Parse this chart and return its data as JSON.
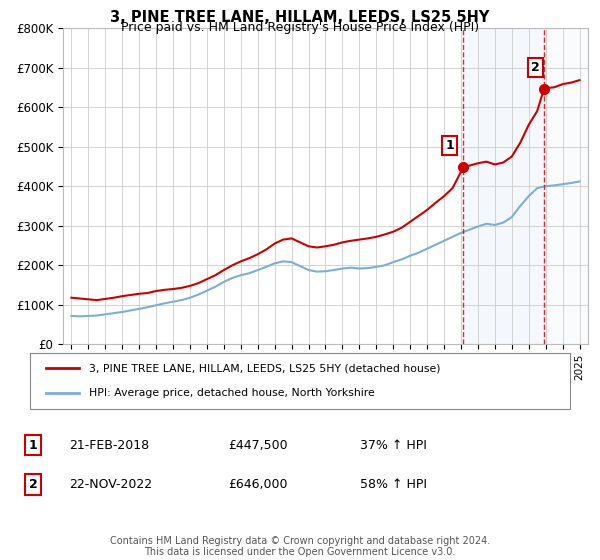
{
  "title": "3, PINE TREE LANE, HILLAM, LEEDS, LS25 5HY",
  "subtitle": "Price paid vs. HM Land Registry's House Price Index (HPI)",
  "red_label": "3, PINE TREE LANE, HILLAM, LEEDS, LS25 5HY (detached house)",
  "blue_label": "HPI: Average price, detached house, North Yorkshire",
  "annotation1_date": "21-FEB-2018",
  "annotation1_price": "£447,500",
  "annotation1_hpi": "37% ↑ HPI",
  "annotation2_date": "22-NOV-2022",
  "annotation2_price": "£646,000",
  "annotation2_hpi": "58% ↑ HPI",
  "footnote": "Contains HM Land Registry data © Crown copyright and database right 2024.\nThis data is licensed under the Open Government Licence v3.0.",
  "red_color": "#cc0000",
  "blue_color": "#7bafd4",
  "marker1_x": 2018.13,
  "marker1_y": 447500,
  "marker2_x": 2022.9,
  "marker2_y": 646000,
  "vline1_x": 2018.13,
  "vline2_x": 2022.9,
  "ylim": [
    0,
    800000
  ],
  "xlim": [
    1994.5,
    2025.5
  ],
  "yticks": [
    0,
    100000,
    200000,
    300000,
    400000,
    500000,
    600000,
    700000,
    800000
  ],
  "ytick_labels": [
    "£0",
    "£100K",
    "£200K",
    "£300K",
    "£400K",
    "£500K",
    "£600K",
    "£700K",
    "£800K"
  ],
  "xticks": [
    1995,
    1996,
    1997,
    1998,
    1999,
    2000,
    2001,
    2002,
    2003,
    2004,
    2005,
    2006,
    2007,
    2008,
    2009,
    2010,
    2011,
    2012,
    2013,
    2014,
    2015,
    2016,
    2017,
    2018,
    2019,
    2020,
    2021,
    2022,
    2023,
    2024,
    2025
  ],
  "red_x": [
    1995.0,
    1995.5,
    1996.0,
    1996.5,
    1997.0,
    1997.5,
    1998.0,
    1998.5,
    1999.0,
    1999.5,
    2000.0,
    2000.5,
    2001.0,
    2001.5,
    2002.0,
    2002.5,
    2003.0,
    2003.5,
    2004.0,
    2004.5,
    2005.0,
    2005.5,
    2006.0,
    2006.5,
    2007.0,
    2007.5,
    2008.0,
    2008.5,
    2009.0,
    2009.5,
    2010.0,
    2010.5,
    2011.0,
    2011.5,
    2012.0,
    2012.5,
    2013.0,
    2013.5,
    2014.0,
    2014.5,
    2015.0,
    2015.5,
    2016.0,
    2016.5,
    2017.0,
    2017.5,
    2018.13,
    2018.5,
    2019.0,
    2019.5,
    2020.0,
    2020.5,
    2021.0,
    2021.5,
    2022.0,
    2022.5,
    2022.9,
    2023.0,
    2023.5,
    2024.0,
    2024.5,
    2025.0
  ],
  "red_y": [
    118000,
    116000,
    114000,
    112000,
    115000,
    118000,
    122000,
    125000,
    128000,
    130000,
    135000,
    138000,
    140000,
    143000,
    148000,
    155000,
    165000,
    175000,
    188000,
    200000,
    210000,
    218000,
    228000,
    240000,
    255000,
    265000,
    268000,
    258000,
    248000,
    245000,
    248000,
    252000,
    258000,
    262000,
    265000,
    268000,
    272000,
    278000,
    285000,
    295000,
    310000,
    325000,
    340000,
    358000,
    375000,
    395000,
    447500,
    452000,
    458000,
    462000,
    455000,
    460000,
    475000,
    510000,
    555000,
    590000,
    646000,
    648000,
    650000,
    658000,
    662000,
    668000
  ],
  "blue_x": [
    1995.0,
    1995.5,
    1996.0,
    1996.5,
    1997.0,
    1997.5,
    1998.0,
    1998.5,
    1999.0,
    1999.5,
    2000.0,
    2000.5,
    2001.0,
    2001.5,
    2002.0,
    2002.5,
    2003.0,
    2003.5,
    2004.0,
    2004.5,
    2005.0,
    2005.5,
    2006.0,
    2006.5,
    2007.0,
    2007.5,
    2008.0,
    2008.5,
    2009.0,
    2009.5,
    2010.0,
    2010.5,
    2011.0,
    2011.5,
    2012.0,
    2012.5,
    2013.0,
    2013.5,
    2014.0,
    2014.5,
    2015.0,
    2015.5,
    2016.0,
    2016.5,
    2017.0,
    2017.5,
    2018.0,
    2018.5,
    2019.0,
    2019.5,
    2020.0,
    2020.5,
    2021.0,
    2021.5,
    2022.0,
    2022.5,
    2023.0,
    2023.5,
    2024.0,
    2024.5,
    2025.0
  ],
  "blue_y": [
    72000,
    71000,
    72000,
    73000,
    76000,
    79000,
    82000,
    86000,
    90000,
    94000,
    99000,
    104000,
    108000,
    112000,
    118000,
    126000,
    136000,
    146000,
    158000,
    168000,
    175000,
    180000,
    188000,
    196000,
    205000,
    210000,
    208000,
    198000,
    188000,
    184000,
    185000,
    188000,
    192000,
    194000,
    192000,
    193000,
    196000,
    200000,
    208000,
    215000,
    224000,
    232000,
    242000,
    252000,
    262000,
    272000,
    282000,
    290000,
    298000,
    305000,
    302000,
    308000,
    322000,
    350000,
    375000,
    395000,
    400000,
    402000,
    405000,
    408000,
    412000
  ]
}
